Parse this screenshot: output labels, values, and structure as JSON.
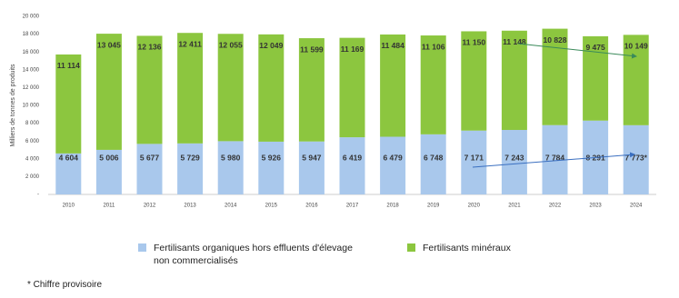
{
  "chart_data": {
    "type": "stacked-bar",
    "y_label": "Milliers de tonnes de produits",
    "categories": [
      "2010",
      "2011",
      "2012",
      "2013",
      "2014",
      "2015",
      "2016",
      "2017",
      "2018",
      "2019",
      "2020",
      "2021",
      "2022",
      "2023",
      "2024"
    ],
    "series": [
      {
        "name": "Fertilisants organiques hors effluents d'élevage non commercialisés",
        "color": "#a9c8ec",
        "values": [
          4604,
          5006,
          5677,
          5729,
          5980,
          5926,
          5947,
          6419,
          6479,
          6748,
          7171,
          7243,
          7784,
          8291,
          7773
        ],
        "value_labels": [
          "4 604",
          "5 006",
          "5 677",
          "5 729",
          "5 980",
          "5 926",
          "5 947",
          "6 419",
          "6 479",
          "6 748",
          "7 171",
          "7 243",
          "7 784",
          "8 291",
          "7 773*"
        ]
      },
      {
        "name": "Fertilisants minéraux",
        "color": "#8cc63f",
        "values": [
          11114,
          13045,
          12136,
          12411,
          12055,
          12049,
          11599,
          11169,
          11484,
          11106,
          11150,
          11148,
          10828,
          9475,
          10149
        ],
        "value_labels": [
          "11 114",
          "13 045",
          "12 136",
          "12 411",
          "12 055",
          "12 049",
          "11 599",
          "11 169",
          "11 484",
          "11 106",
          "11 150",
          "11 148",
          "10 828",
          "9 475",
          "10 149"
        ]
      }
    ],
    "ylim": [
      0,
      20000
    ],
    "yticks": [
      {
        "value": 0,
        "label": "-"
      },
      {
        "value": 2000,
        "label": "2 000"
      },
      {
        "value": 4000,
        "label": "4 000"
      },
      {
        "value": 6000,
        "label": "6 000"
      },
      {
        "value": 8000,
        "label": "8 000"
      },
      {
        "value": 10000,
        "label": "10 000"
      },
      {
        "value": 12000,
        "label": "12 000"
      },
      {
        "value": 14000,
        "label": "14 000"
      },
      {
        "value": 16000,
        "label": "16 000"
      },
      {
        "value": 18000,
        "label": "18 000"
      },
      {
        "value": 20000,
        "label": "20 000"
      }
    ],
    "footnote": "* Chiffre provisoire"
  }
}
